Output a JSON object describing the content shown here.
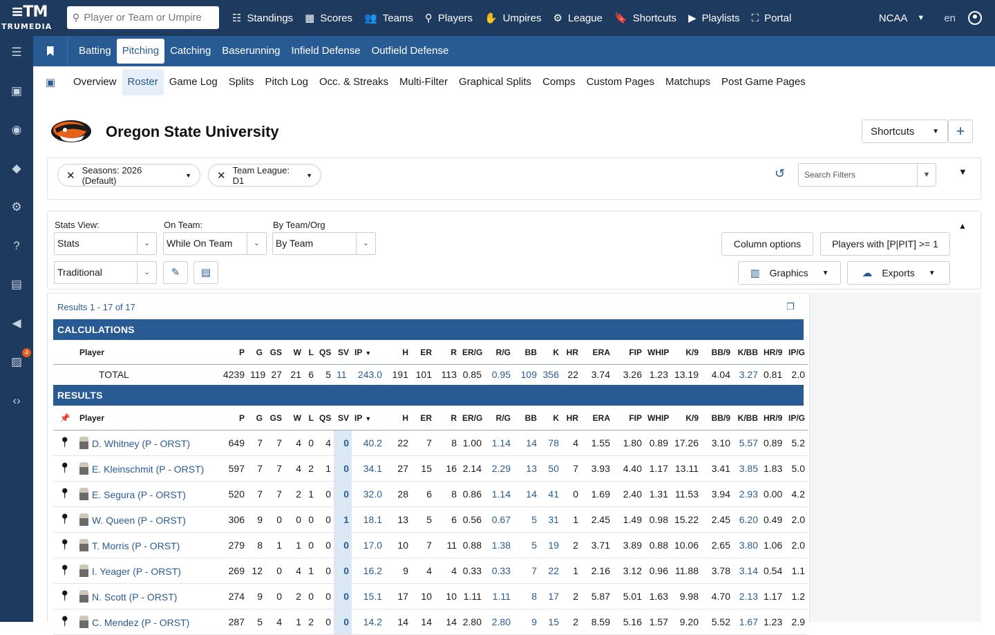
{
  "app": {
    "logo_mark": "≡TM",
    "logo_word": "TRUMEDIA",
    "search_placeholder": "Player or Team or Umpire",
    "nav": [
      {
        "label": "Standings",
        "icon": "☷"
      },
      {
        "label": "Scores",
        "icon": "▦"
      },
      {
        "label": "Teams",
        "icon": "👥"
      },
      {
        "label": "Players",
        "icon": "⚲"
      },
      {
        "label": "Umpires",
        "icon": "✋"
      },
      {
        "label": "League",
        "icon": "⚙"
      },
      {
        "label": "Shortcuts",
        "icon": "🔖"
      },
      {
        "label": "Playlists",
        "icon": "▶"
      },
      {
        "label": "Portal",
        "icon": "⛶"
      }
    ],
    "org": "NCAA",
    "lang": "en",
    "notification_count": "4"
  },
  "category_tabs": [
    "Batting",
    "Pitching",
    "Catching",
    "Baserunning",
    "Infield Defense",
    "Outfield Defense"
  ],
  "active_category": "Pitching",
  "sub_tabs": [
    "Overview",
    "Roster",
    "Game Log",
    "Splits",
    "Pitch Log",
    "Occ. & Streaks",
    "Multi-Filter",
    "Graphical Splits",
    "Comps",
    "Custom Pages",
    "Matchups",
    "Post Game Pages"
  ],
  "active_sub": "Roster",
  "team": {
    "name": "Oregon State University"
  },
  "shortcuts_label": "Shortcuts",
  "filters": {
    "chips": [
      "Seasons: 2026 (Default)",
      "Team League: D1"
    ],
    "search_placeholder": "Search Filters"
  },
  "controls": {
    "stats_view_label": "Stats View:",
    "stats_view_value": "Stats",
    "on_team_label": "On Team:",
    "on_team_value": "While On Team",
    "by_team_label": "By Team/Org",
    "by_team_value": "By Team",
    "stat_set_value": "Traditional",
    "column_options": "Column options",
    "players_filter": "Players with [P|PIT] >= 1",
    "graphics": "Graphics",
    "exports": "Exports"
  },
  "results": {
    "count": "Results 1 - 17 of 17",
    "calc_header": "CALCULATIONS",
    "results_header": "RESULTS",
    "columns": [
      "Player",
      "P",
      "G",
      "GS",
      "W",
      "L",
      "QS",
      "SV",
      "IP",
      "H",
      "ER",
      "R",
      "ER/G",
      "R/G",
      "BB",
      "K",
      "HR",
      "ERA",
      "FIP",
      "WHIP",
      "K/9",
      "BB/9",
      "K/BB",
      "HR/9",
      "IP/G"
    ],
    "total": [
      "TOTAL",
      "4239",
      "119",
      "27",
      "21",
      "6",
      "5",
      "11",
      "243.0",
      "191",
      "101",
      "113",
      "0.85",
      "0.95",
      "109",
      "356",
      "22",
      "3.74",
      "3.26",
      "1.23",
      "13.19",
      "4.04",
      "3.27",
      "0.81",
      "2.0"
    ],
    "rows": [
      [
        "D. Whitney (P - ORST)",
        "649",
        "7",
        "7",
        "4",
        "0",
        "4",
        "0",
        "40.2",
        "22",
        "7",
        "8",
        "1.00",
        "1.14",
        "14",
        "78",
        "4",
        "1.55",
        "1.80",
        "0.89",
        "17.26",
        "3.10",
        "5.57",
        "0.89",
        "5.2"
      ],
      [
        "E. Kleinschmit (P - ORST)",
        "597",
        "7",
        "7",
        "4",
        "2",
        "1",
        "0",
        "34.1",
        "27",
        "15",
        "16",
        "2.14",
        "2.29",
        "13",
        "50",
        "7",
        "3.93",
        "4.40",
        "1.17",
        "13.11",
        "3.41",
        "3.85",
        "1.83",
        "5.0"
      ],
      [
        "E. Segura (P - ORST)",
        "520",
        "7",
        "7",
        "2",
        "1",
        "0",
        "0",
        "32.0",
        "28",
        "6",
        "8",
        "0.86",
        "1.14",
        "14",
        "41",
        "0",
        "1.69",
        "2.40",
        "1.31",
        "11.53",
        "3.94",
        "2.93",
        "0.00",
        "4.2"
      ],
      [
        "W. Queen (P - ORST)",
        "306",
        "9",
        "0",
        "0",
        "0",
        "0",
        "1",
        "18.1",
        "13",
        "5",
        "6",
        "0.56",
        "0.67",
        "5",
        "31",
        "1",
        "2.45",
        "1.49",
        "0.98",
        "15.22",
        "2.45",
        "6.20",
        "0.49",
        "2.0"
      ],
      [
        "T. Morris (P - ORST)",
        "279",
        "8",
        "1",
        "1",
        "0",
        "0",
        "0",
        "17.0",
        "10",
        "7",
        "11",
        "0.88",
        "1.38",
        "5",
        "19",
        "2",
        "3.71",
        "3.89",
        "0.88",
        "10.06",
        "2.65",
        "3.80",
        "1.06",
        "2.0"
      ],
      [
        "I. Yeager (P - ORST)",
        "269",
        "12",
        "0",
        "4",
        "1",
        "0",
        "0",
        "16.2",
        "9",
        "4",
        "4",
        "0.33",
        "0.33",
        "7",
        "22",
        "1",
        "2.16",
        "3.12",
        "0.96",
        "11.88",
        "3.78",
        "3.14",
        "0.54",
        "1.1"
      ],
      [
        "N. Scott (P - ORST)",
        "274",
        "9",
        "0",
        "2",
        "0",
        "0",
        "0",
        "15.1",
        "17",
        "10",
        "10",
        "1.11",
        "1.11",
        "8",
        "17",
        "2",
        "5.87",
        "5.01",
        "1.63",
        "9.98",
        "4.70",
        "2.13",
        "1.17",
        "1.2"
      ],
      [
        "C. Mendez (P - ORST)",
        "287",
        "5",
        "4",
        "1",
        "2",
        "0",
        "0",
        "14.2",
        "14",
        "14",
        "14",
        "2.80",
        "2.80",
        "9",
        "15",
        "2",
        "8.59",
        "5.16",
        "1.57",
        "9.20",
        "5.52",
        "1.67",
        "1.23",
        "2.9"
      ]
    ]
  },
  "colors": {
    "navy": "#1e3a5f",
    "blue": "#285b94",
    "ip_highlight": "#dbe8f6"
  }
}
